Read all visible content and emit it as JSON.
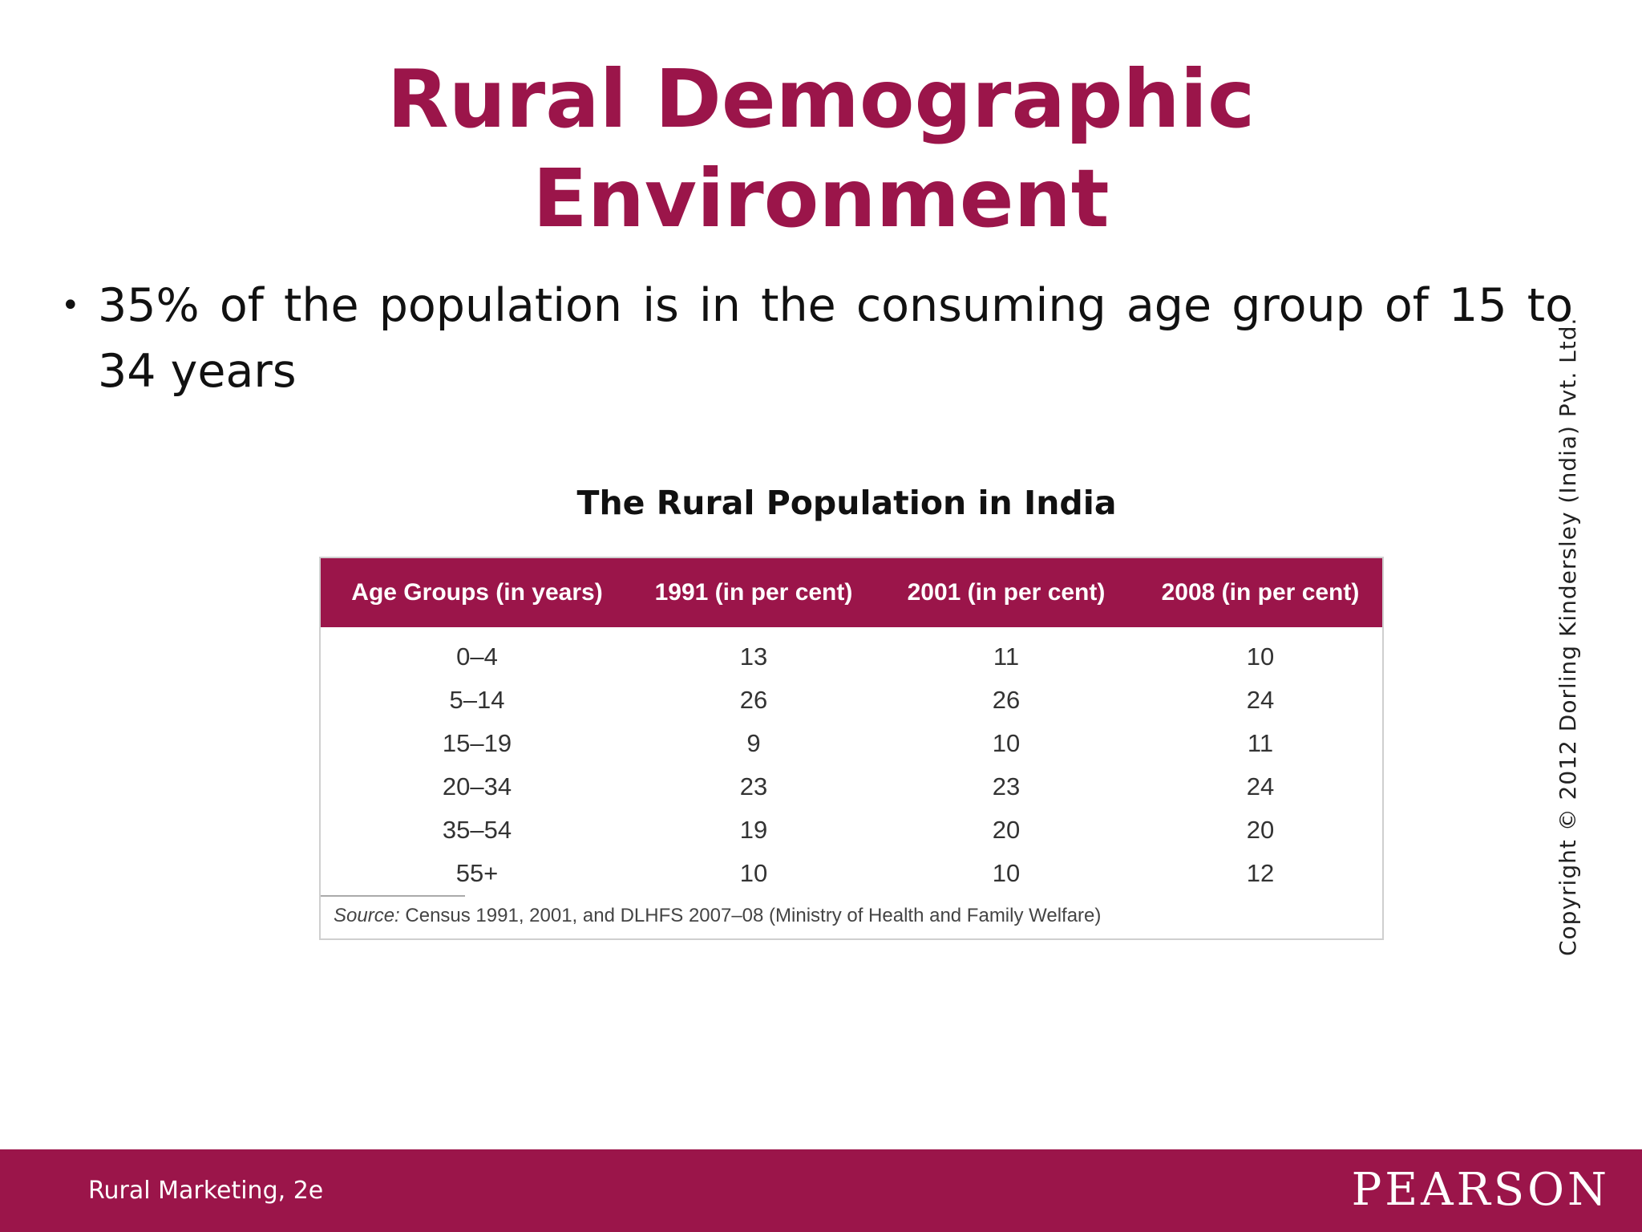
{
  "slide": {
    "title_line1": "Rural Demographic",
    "title_line2": "Environment",
    "bullet_marker": "•",
    "bullet_text": "35% of the population is in the consuming age group of 15 to 34 years",
    "copyright": "Copyright © 2012  Dorling Kindersley (India) Pvt. Ltd."
  },
  "table": {
    "caption": "The Rural Population in India",
    "headers": [
      "Age Groups (in years)",
      "1991 (in per cent)",
      "2001 (in per cent)",
      "2008 (in per cent)"
    ],
    "rows": [
      [
        "0–4",
        "13",
        "11",
        "10"
      ],
      [
        "5–14",
        "26",
        "26",
        "24"
      ],
      [
        "15–19",
        "9",
        "10",
        "11"
      ],
      [
        "20–34",
        "23",
        "23",
        "24"
      ],
      [
        "35–54",
        "19",
        "20",
        "20"
      ],
      [
        "55+",
        "10",
        "10",
        "12"
      ]
    ],
    "source_label": "Source:",
    "source_text": " Census 1991, 2001, and DLHFS 2007–08 (Ministry of Health and Family Welfare)"
  },
  "footer": {
    "book": "Rural Marketing, 2e",
    "publisher": "PEARSON"
  },
  "colors": {
    "brand": "#9b154a"
  }
}
